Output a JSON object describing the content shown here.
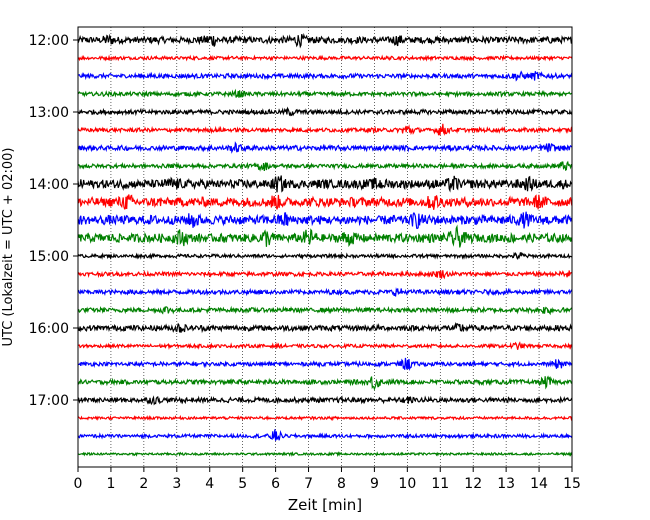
{
  "chart_data": {
    "type": "line",
    "title": "",
    "xlabel": "Zeit  [min]",
    "ylabel": "UTC (Lokalzeit = UTC + 02:00)",
    "xlim": [
      0,
      15
    ],
    "xticks": [
      0,
      1,
      2,
      3,
      4,
      5,
      6,
      7,
      8,
      9,
      10,
      11,
      12,
      13,
      14,
      15
    ],
    "yticks": [
      {
        "label": "12:00",
        "trace_index": 0
      },
      {
        "label": "13:00",
        "trace_index": 4
      },
      {
        "label": "14:00",
        "trace_index": 8
      },
      {
        "label": "15:00",
        "trace_index": 12
      },
      {
        "label": "16:00",
        "trace_index": 16
      },
      {
        "label": "17:00",
        "trace_index": 20
      }
    ],
    "vertical_grid": "dotted at each minute",
    "trace_interval_minutes": 15,
    "colors": [
      "#000000",
      "#ff0000",
      "#0000ff",
      "#008000"
    ],
    "traces": [
      {
        "start": "12:00",
        "color": "#000000",
        "amplitude": 0.3,
        "events": [
          [
            0.9,
            0.25
          ],
          [
            4.05,
            0.55
          ],
          [
            6.7,
            0.45
          ],
          [
            9.7,
            0.2
          ]
        ]
      },
      {
        "start": "12:15",
        "color": "#ff0000",
        "amplitude": 0.15,
        "events": []
      },
      {
        "start": "12:30",
        "color": "#0000ff",
        "amplitude": 0.2,
        "events": [
          [
            13.4,
            0.3
          ],
          [
            13.9,
            0.25
          ]
        ]
      },
      {
        "start": "12:45",
        "color": "#008000",
        "amplitude": 0.18,
        "events": [
          [
            4.9,
            0.2
          ]
        ]
      },
      {
        "start": "13:00",
        "color": "#000000",
        "amplitude": 0.2,
        "events": [
          [
            6.4,
            0.2
          ]
        ]
      },
      {
        "start": "13:15",
        "color": "#ff0000",
        "amplitude": 0.18,
        "events": [
          [
            10.0,
            0.45
          ],
          [
            11.05,
            0.45
          ]
        ]
      },
      {
        "start": "13:30",
        "color": "#0000ff",
        "amplitude": 0.22,
        "events": [
          [
            4.8,
            0.3
          ],
          [
            14.3,
            0.35
          ]
        ]
      },
      {
        "start": "13:45",
        "color": "#008000",
        "amplitude": 0.18,
        "events": [
          [
            5.6,
            0.35
          ],
          [
            14.75,
            0.3
          ]
        ]
      },
      {
        "start": "14:00",
        "color": "#000000",
        "amplitude": 0.4,
        "events": [
          [
            2.95,
            0.35
          ],
          [
            6.1,
            0.4
          ],
          [
            9.1,
            0.35
          ],
          [
            11.4,
            0.4
          ],
          [
            13.7,
            0.35
          ]
        ]
      },
      {
        "start": "14:15",
        "color": "#ff0000",
        "amplitude": 0.42,
        "events": [
          [
            1.5,
            0.45
          ],
          [
            6.0,
            0.35
          ],
          [
            10.8,
            0.45
          ],
          [
            14.0,
            0.4
          ]
        ]
      },
      {
        "start": "14:30",
        "color": "#0000ff",
        "amplitude": 0.42,
        "events": [
          [
            3.5,
            0.35
          ],
          [
            6.3,
            0.4
          ],
          [
            10.3,
            0.45
          ],
          [
            13.6,
            0.4
          ]
        ]
      },
      {
        "start": "14:45",
        "color": "#008000",
        "amplitude": 0.4,
        "events": [
          [
            3.1,
            0.45
          ],
          [
            5.7,
            0.45
          ],
          [
            7.0,
            0.5
          ],
          [
            8.2,
            0.4
          ],
          [
            11.5,
            0.75
          ]
        ]
      },
      {
        "start": "15:00",
        "color": "#000000",
        "amplitude": 0.15,
        "events": [
          [
            13.4,
            0.3
          ]
        ]
      },
      {
        "start": "15:15",
        "color": "#ff0000",
        "amplitude": 0.18,
        "events": [
          [
            11.0,
            0.35
          ],
          [
            14.8,
            0.3
          ]
        ]
      },
      {
        "start": "15:30",
        "color": "#0000ff",
        "amplitude": 0.2,
        "events": [
          [
            9.7,
            0.25
          ]
        ]
      },
      {
        "start": "15:45",
        "color": "#008000",
        "amplitude": 0.2,
        "events": [
          [
            2.7,
            0.2
          ],
          [
            14.25,
            0.3
          ]
        ]
      },
      {
        "start": "16:00",
        "color": "#000000",
        "amplitude": 0.25,
        "events": [
          [
            3.1,
            0.3
          ],
          [
            11.6,
            0.3
          ]
        ]
      },
      {
        "start": "16:15",
        "color": "#ff0000",
        "amplitude": 0.15,
        "events": [
          [
            13.3,
            0.2
          ]
        ]
      },
      {
        "start": "16:30",
        "color": "#0000ff",
        "amplitude": 0.18,
        "events": [
          [
            10.0,
            0.45
          ],
          [
            14.6,
            0.3
          ]
        ]
      },
      {
        "start": "16:45",
        "color": "#008000",
        "amplitude": 0.2,
        "events": [
          [
            9.0,
            0.6
          ],
          [
            14.2,
            0.3
          ]
        ]
      },
      {
        "start": "17:00",
        "color": "#000000",
        "amplitude": 0.22,
        "events": [
          [
            2.3,
            0.2
          ],
          [
            10.0,
            0.2
          ]
        ]
      },
      {
        "start": "17:15",
        "color": "#ff0000",
        "amplitude": 0.12,
        "events": []
      },
      {
        "start": "17:30",
        "color": "#0000ff",
        "amplitude": 0.15,
        "events": [
          [
            6.0,
            0.5
          ]
        ]
      },
      {
        "start": "17:45",
        "color": "#008000",
        "amplitude": 0.1,
        "events": []
      }
    ]
  }
}
